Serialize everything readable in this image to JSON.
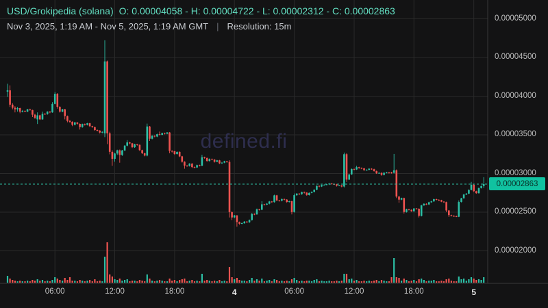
{
  "header": {
    "pair": "USD/Grokipedia (solana)",
    "ohlc": "O: 0.00004058 - H: 0.00004722 - L: 0.00002312 - C: 0.00002863",
    "date_range": "Nov 3, 2025, 1:19 AM - Nov 5, 2025, 1:19 AM GMT",
    "separator": "|",
    "resolution_label": "Resolution: 15m"
  },
  "watermark": "defined.fi",
  "current_price": {
    "label": "0.00002863",
    "value": 2863
  },
  "colors": {
    "background": "#131314",
    "grid": "#2a2a2a",
    "axis_line": "#3a3a3a",
    "up": "#2cbfa5",
    "down": "#ef5350",
    "dotted_price_line": "#2cbfa5",
    "pill_bg": "#10c2a0",
    "pill_text": "#0a2e26",
    "title_teal": "#63dfc2",
    "axis_text": "#bdbdbd",
    "watermark": "#2e2e4e"
  },
  "y_axis": {
    "ticks": [
      {
        "label": "0.00005000",
        "value": 5000
      },
      {
        "label": "0.00004500",
        "value": 4500
      },
      {
        "label": "0.00004000",
        "value": 4000
      },
      {
        "label": "0.00003500",
        "value": 3500
      },
      {
        "label": "0.00003000",
        "value": 3000
      },
      {
        "label": "0.00002500",
        "value": 2500
      },
      {
        "label": "0.00002000",
        "value": 2000
      }
    ]
  },
  "x_axis": {
    "ticks": [
      {
        "label": "06:00",
        "index": 19,
        "bold": false
      },
      {
        "label": "12:00",
        "index": 43,
        "bold": false
      },
      {
        "label": "18:00",
        "index": 67,
        "bold": false
      },
      {
        "label": "4",
        "index": 91,
        "bold": true
      },
      {
        "label": "06:00",
        "index": 115,
        "bold": false
      },
      {
        "label": "12:00",
        "index": 139,
        "bold": false
      },
      {
        "label": "18:00",
        "index": 163,
        "bold": false
      },
      {
        "label": "5",
        "index": 187,
        "bold": true
      }
    ]
  },
  "chart_data": {
    "type": "candlestick",
    "title": "USD/Grokipedia (solana)",
    "resolution": "15m",
    "time_range": "Nov 3, 2025, 1:19 AM - Nov 5, 2025, 1:19 AM GMT",
    "price_unit": "USD x 1e-8",
    "summary": {
      "open": 4058,
      "high": 4722,
      "low": 2312,
      "close": 2863
    },
    "ylim": [
      2000,
      5000
    ],
    "grid": true,
    "candles": [
      [
        4058,
        4160,
        3990,
        4075
      ],
      [
        4075,
        4140,
        3860,
        3890
      ],
      [
        3890,
        3910,
        3830,
        3850
      ],
      [
        3850,
        3870,
        3790,
        3830
      ],
      [
        3830,
        3862,
        3800,
        3845
      ],
      [
        3845,
        3850,
        3780,
        3800
      ],
      [
        3800,
        3820,
        3790,
        3810
      ],
      [
        3810,
        3818,
        3795,
        3806
      ],
      [
        3800,
        3835,
        3795,
        3830
      ],
      [
        3830,
        3838,
        3812,
        3820
      ],
      [
        3820,
        3825,
        3730,
        3760
      ],
      [
        3760,
        3772,
        3705,
        3720
      ],
      [
        3700,
        3790,
        3640,
        3752
      ],
      [
        3752,
        3760,
        3692,
        3700
      ],
      [
        3700,
        3800,
        3695,
        3772
      ],
      [
        3772,
        3780,
        3758,
        3768
      ],
      [
        3768,
        3805,
        3760,
        3800
      ],
      [
        3800,
        3806,
        3780,
        3790
      ],
      [
        3790,
        3922,
        3785,
        3900
      ],
      [
        3900,
        4052,
        3895,
        4030
      ],
      [
        4030,
        4040,
        3838,
        3862
      ],
      [
        3862,
        3870,
        3788,
        3800
      ],
      [
        3800,
        3836,
        3792,
        3830
      ],
      [
        3830,
        3836,
        3700,
        3742
      ],
      [
        3742,
        3750,
        3662,
        3680
      ],
      [
        3680,
        3692,
        3655,
        3668
      ],
      [
        3668,
        3675,
        3612,
        3630
      ],
      [
        3630,
        3668,
        3622,
        3660
      ],
      [
        3660,
        3665,
        3632,
        3642
      ],
      [
        3642,
        3648,
        3568,
        3600
      ],
      [
        3600,
        3645,
        3592,
        3640
      ],
      [
        3640,
        3646,
        3620,
        3630
      ],
      [
        3630,
        3655,
        3622,
        3650
      ],
      [
        3650,
        3656,
        3602,
        3612
      ],
      [
        3612,
        3618,
        3592,
        3600
      ],
      [
        3600,
        3606,
        3552,
        3562
      ],
      [
        3562,
        3570,
        3545,
        3555
      ],
      [
        3555,
        3560,
        3518,
        3530
      ],
      [
        3530,
        3545,
        3520,
        3538
      ],
      [
        3520,
        4722,
        3470,
        4450
      ],
      [
        4450,
        4460,
        3380,
        3520
      ],
      [
        3520,
        3540,
        3248,
        3280
      ],
      [
        3280,
        3300,
        3100,
        3190
      ],
      [
        3190,
        3268,
        3152,
        3258
      ],
      [
        3258,
        3308,
        3240,
        3300
      ],
      [
        3300,
        3310,
        3140,
        3240
      ],
      [
        3240,
        3305,
        3228,
        3298
      ],
      [
        3298,
        3368,
        3290,
        3360
      ],
      [
        3360,
        3432,
        3350,
        3402
      ],
      [
        3402,
        3410,
        3378,
        3390
      ],
      [
        3390,
        3396,
        3330,
        3340
      ],
      [
        3340,
        3385,
        3332,
        3378
      ],
      [
        3378,
        3384,
        3360,
        3370
      ],
      [
        3370,
        3376,
        3292,
        3302
      ],
      [
        3302,
        3308,
        3252,
        3262
      ],
      [
        3262,
        3268,
        3222,
        3232
      ],
      [
        3232,
        3645,
        3222,
        3608
      ],
      [
        3608,
        3615,
        3420,
        3450
      ],
      [
        3450,
        3495,
        3442,
        3488
      ],
      [
        3488,
        3494,
        3468,
        3478
      ],
      [
        3478,
        3515,
        3470,
        3508
      ],
      [
        3508,
        3542,
        3492,
        3500
      ],
      [
        3500,
        3528,
        3494,
        3522
      ],
      [
        3522,
        3528,
        3505,
        3515
      ],
      [
        3515,
        3535,
        3508,
        3530
      ],
      [
        3530,
        3536,
        3262,
        3292
      ],
      [
        3292,
        3300,
        3272,
        3288
      ],
      [
        3288,
        3294,
        3242,
        3252
      ],
      [
        3252,
        3285,
        3246,
        3280
      ],
      [
        3280,
        3286,
        3212,
        3222
      ],
      [
        3222,
        3228,
        3142,
        3152
      ],
      [
        3152,
        3158,
        3062,
        3102
      ],
      [
        3102,
        3110,
        3088,
        3098
      ],
      [
        3098,
        3134,
        3090,
        3128
      ],
      [
        3128,
        3134,
        3072,
        3082
      ],
      [
        3082,
        3090,
        3068,
        3078
      ],
      [
        3078,
        3115,
        3072,
        3108
      ],
      [
        3108,
        3114,
        3092,
        3102
      ],
      [
        3102,
        3242,
        3096,
        3210
      ],
      [
        3210,
        3218,
        3192,
        3200
      ],
      [
        3200,
        3206,
        3152,
        3162
      ],
      [
        3162,
        3195,
        3155,
        3188
      ],
      [
        3188,
        3194,
        3172,
        3180
      ],
      [
        3180,
        3186,
        3142,
        3152
      ],
      [
        3152,
        3176,
        3146,
        3170
      ],
      [
        3170,
        3176,
        3122,
        3132
      ],
      [
        3132,
        3148,
        3126,
        3140
      ],
      [
        3140,
        3165,
        3134,
        3158
      ],
      [
        3158,
        3164,
        3140,
        3150
      ],
      [
        3150,
        3172,
        2432,
        2502
      ],
      [
        2502,
        2508,
        2398,
        2432
      ],
      [
        2432,
        2465,
        2422,
        2458
      ],
      [
        2458,
        2462,
        2312,
        2372
      ],
      [
        2372,
        2378,
        2338,
        2352
      ],
      [
        2352,
        2366,
        2344,
        2358
      ],
      [
        2358,
        2385,
        2350,
        2378
      ],
      [
        2378,
        2384,
        2362,
        2370
      ],
      [
        2370,
        2405,
        2362,
        2398
      ],
      [
        2398,
        2488,
        2392,
        2478
      ],
      [
        2478,
        2484,
        2462,
        2472
      ],
      [
        2472,
        2546,
        2466,
        2538
      ],
      [
        2538,
        2544,
        2522,
        2532
      ],
      [
        2532,
        2642,
        2526,
        2602
      ],
      [
        2602,
        2608,
        2588,
        2598
      ],
      [
        2598,
        2618,
        2590,
        2610
      ],
      [
        2610,
        2645,
        2602,
        2638
      ],
      [
        2638,
        2644,
        2622,
        2630
      ],
      [
        2630,
        2726,
        2624,
        2718
      ],
      [
        2718,
        2724,
        2645,
        2652
      ],
      [
        2652,
        2658,
        2638,
        2648
      ],
      [
        2648,
        2676,
        2640,
        2670
      ],
      [
        2670,
        2676,
        2652,
        2662
      ],
      [
        2662,
        2668,
        2622,
        2632
      ],
      [
        2632,
        2648,
        2626,
        2642
      ],
      [
        2642,
        2648,
        2472,
        2502
      ],
      [
        2502,
        2742,
        2495,
        2720
      ],
      [
        2720,
        2748,
        2712,
        2740
      ],
      [
        2740,
        2746,
        2722,
        2732
      ],
      [
        2732,
        2765,
        2726,
        2760
      ],
      [
        2760,
        2766,
        2742,
        2752
      ],
      [
        2752,
        2758,
        2712,
        2722
      ],
      [
        2722,
        2755,
        2716,
        2750
      ],
      [
        2750,
        2768,
        2744,
        2762
      ],
      [
        2762,
        2795,
        2756,
        2790
      ],
      [
        2790,
        2846,
        2784,
        2840
      ],
      [
        2840,
        2846,
        2822,
        2832
      ],
      [
        2832,
        2856,
        2826,
        2850
      ],
      [
        2850,
        2860,
        2844,
        2855
      ],
      [
        2855,
        2865,
        2848,
        2860
      ],
      [
        2860,
        2875,
        2852,
        2870
      ],
      [
        2870,
        2876,
        2858,
        2865
      ],
      [
        2865,
        2870,
        2852,
        2860
      ],
      [
        2860,
        2866,
        2832,
        2842
      ],
      [
        2842,
        2852,
        2836,
        2846
      ],
      [
        2846,
        2852,
        2822,
        2832
      ],
      [
        2832,
        3271,
        2820,
        3250
      ],
      [
        3250,
        3262,
        2892,
        2922
      ],
      [
        2922,
        2995,
        2915,
        2988
      ],
      [
        2988,
        3065,
        2982,
        3058
      ],
      [
        3058,
        3064,
        3042,
        3052
      ],
      [
        3052,
        3100,
        3046,
        3082
      ],
      [
        3082,
        3088,
        3062,
        3072
      ],
      [
        3072,
        3078,
        3056,
        3066
      ],
      [
        3066,
        3072,
        3035,
        3042
      ],
      [
        3042,
        3055,
        3036,
        3048
      ],
      [
        3048,
        3068,
        3042,
        3062
      ],
      [
        3062,
        3068,
        3048,
        3056
      ],
      [
        3056,
        3062,
        3025,
        3032
      ],
      [
        3032,
        3038,
        2995,
        3002
      ],
      [
        3002,
        3015,
        2996,
        3008
      ],
      [
        3008,
        3014,
        2972,
        2982
      ],
      [
        2982,
        3015,
        2976,
        3010
      ],
      [
        3010,
        3022,
        3002,
        3015
      ],
      [
        3015,
        3020,
        3000,
        3008
      ],
      [
        3016,
        3022,
        2998,
        3008
      ],
      [
        3010,
        3253,
        3000,
        3042
      ],
      [
        3042,
        3052,
        2682,
        2702
      ],
      [
        2702,
        2710,
        2622,
        2662
      ],
      [
        2662,
        2688,
        2655,
        2682
      ],
      [
        2682,
        2688,
        2482,
        2502
      ],
      [
        2502,
        2545,
        2495,
        2538
      ],
      [
        2538,
        2544,
        2522,
        2530
      ],
      [
        2530,
        2536,
        2505,
        2512
      ],
      [
        2512,
        2552,
        2506,
        2548
      ],
      [
        2548,
        2554,
        2536,
        2544
      ],
      [
        2544,
        2550,
        2432,
        2452
      ],
      [
        2452,
        2595,
        2445,
        2588
      ],
      [
        2588,
        2615,
        2582,
        2608
      ],
      [
        2608,
        2614,
        2592,
        2600
      ],
      [
        2600,
        2635,
        2594,
        2628
      ],
      [
        2628,
        2648,
        2622,
        2640
      ],
      [
        2640,
        2675,
        2634,
        2668
      ],
      [
        2668,
        2674,
        2652,
        2660
      ],
      [
        2660,
        2666,
        2645,
        2655
      ],
      [
        2655,
        2660,
        2630,
        2636
      ],
      [
        2636,
        2642,
        2622,
        2630
      ],
      [
        2630,
        2636,
        2502,
        2522
      ],
      [
        2522,
        2528,
        2438,
        2462
      ],
      [
        2462,
        2468,
        2445,
        2452
      ],
      [
        2452,
        2460,
        2440,
        2448
      ],
      [
        2448,
        2456,
        2436,
        2442
      ],
      [
        2442,
        2652,
        2436,
        2632
      ],
      [
        2632,
        2686,
        2626,
        2680
      ],
      [
        2680,
        2736,
        2674,
        2728
      ],
      [
        2728,
        2748,
        2722,
        2740
      ],
      [
        2740,
        2795,
        2734,
        2788
      ],
      [
        2788,
        2892,
        2782,
        2854
      ],
      [
        2854,
        2860,
        2762,
        2772
      ],
      [
        2772,
        2778,
        2738,
        2746
      ],
      [
        2746,
        2818,
        2740,
        2812
      ],
      [
        2812,
        2845,
        2806,
        2838
      ],
      [
        2838,
        2952,
        2812,
        2863
      ]
    ],
    "volumes": [
      10,
      6,
      4,
      3,
      2,
      3,
      2,
      2,
      3,
      2,
      4,
      3,
      5,
      3,
      4,
      2,
      3,
      2,
      4,
      8,
      6,
      4,
      3,
      7,
      4,
      8,
      3,
      3,
      2,
      4,
      3,
      2,
      3,
      4,
      2,
      5,
      2,
      3,
      2,
      38,
      59,
      12,
      9,
      5,
      4,
      6,
      3,
      4,
      5,
      2,
      3,
      3,
      2,
      4,
      3,
      2,
      12,
      6,
      3,
      2,
      3,
      4,
      3,
      2,
      2,
      6,
      3,
      4,
      2,
      4,
      5,
      6,
      2,
      3,
      4,
      2,
      3,
      2,
      13,
      3,
      4,
      3,
      2,
      3,
      2,
      4,
      2,
      3,
      2,
      23,
      8,
      5,
      7,
      4,
      3,
      3,
      2,
      4,
      7,
      3,
      5,
      3,
      6,
      2,
      3,
      4,
      2,
      5,
      4,
      2,
      3,
      2,
      3,
      2,
      5,
      7,
      4,
      2,
      3,
      2,
      3,
      3,
      2,
      4,
      5,
      2,
      3,
      2,
      2,
      3,
      2,
      2,
      3,
      2,
      3,
      13,
      13,
      5,
      6,
      3,
      4,
      2,
      2,
      3,
      2,
      3,
      2,
      3,
      4,
      2,
      4,
      3,
      2,
      2,
      8,
      36,
      8,
      7,
      3,
      6,
      4,
      2,
      3,
      4,
      2,
      5,
      6,
      4,
      2,
      3,
      3,
      4,
      2,
      2,
      3,
      2,
      5,
      6,
      3,
      2,
      2,
      9,
      5,
      6,
      3,
      5,
      8,
      6,
      4,
      5,
      4,
      8
    ]
  }
}
